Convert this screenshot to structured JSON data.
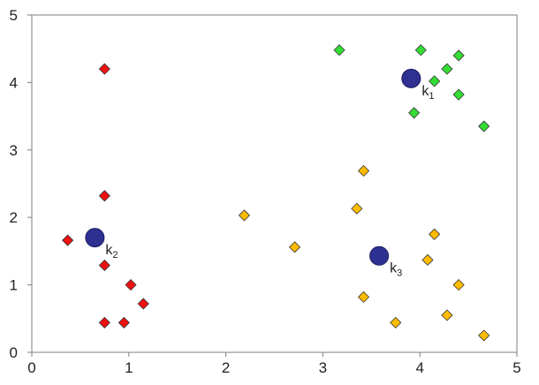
{
  "chart_data": {
    "type": "scatter",
    "title": "",
    "xlabel": "",
    "ylabel": "",
    "xlim": [
      0,
      5
    ],
    "ylim": [
      0,
      5
    ],
    "xticks": [
      "0",
      "1",
      "2",
      "3",
      "4",
      "5"
    ],
    "yticks": [
      "0",
      "1",
      "2",
      "3",
      "4",
      "5"
    ],
    "grid": false,
    "legend": "none",
    "clusters": [
      {
        "color": "#33dd33",
        "marker": "diamond",
        "points": [
          [
            3.17,
            4.48
          ],
          [
            4.01,
            4.48
          ],
          [
            4.4,
            4.4
          ],
          [
            4.28,
            4.2
          ],
          [
            4.15,
            4.02
          ],
          [
            4.4,
            3.82
          ],
          [
            3.94,
            3.55
          ],
          [
            4.66,
            3.35
          ]
        ]
      },
      {
        "color": "#ee1111",
        "marker": "diamond",
        "points": [
          [
            0.75,
            4.2
          ],
          [
            0.75,
            2.32
          ],
          [
            0.37,
            1.66
          ],
          [
            0.75,
            1.29
          ],
          [
            1.02,
            1.0
          ],
          [
            1.15,
            0.72
          ],
          [
            0.75,
            0.44
          ],
          [
            0.95,
            0.44
          ]
        ]
      },
      {
        "color": "#ffbb00",
        "marker": "diamond",
        "points": [
          [
            3.42,
            2.69
          ],
          [
            2.19,
            2.03
          ],
          [
            3.35,
            2.13
          ],
          [
            4.15,
            1.75
          ],
          [
            2.71,
            1.56
          ],
          [
            4.08,
            1.37
          ],
          [
            4.4,
            1.0
          ],
          [
            3.42,
            0.82
          ],
          [
            3.75,
            0.44
          ],
          [
            4.28,
            0.55
          ],
          [
            4.66,
            0.25
          ]
        ]
      }
    ],
    "centroids": [
      {
        "label": "k",
        "subscript": "1",
        "x": 3.91,
        "y": 4.06,
        "color": "#2e3192"
      },
      {
        "label": "k",
        "subscript": "2",
        "x": 0.65,
        "y": 1.7,
        "color": "#2e3192"
      },
      {
        "label": "k",
        "subscript": "3",
        "x": 3.58,
        "y": 1.43,
        "color": "#2e3192"
      }
    ]
  }
}
